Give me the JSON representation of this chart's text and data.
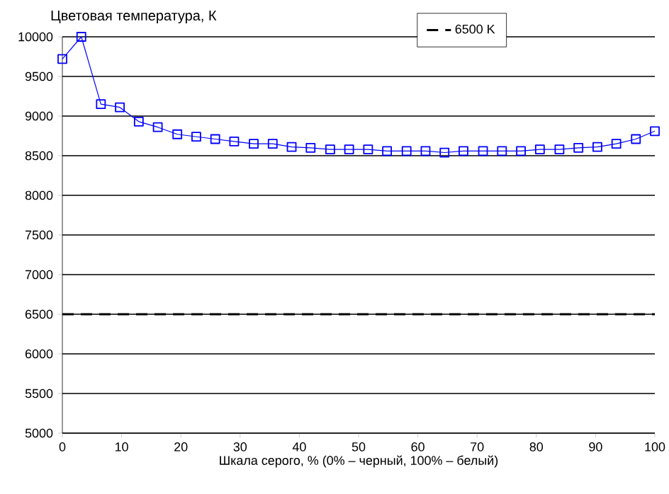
{
  "chart_data": {
    "type": "line",
    "ylabel": "Цветовая температура, К",
    "xlabel": "Шкала серого, % (0% – черный, 100% – белый)",
    "x": [
      0,
      3.2,
      6.5,
      9.7,
      12.9,
      16.1,
      19.4,
      22.6,
      25.8,
      29.0,
      32.3,
      35.5,
      38.7,
      41.9,
      45.2,
      48.4,
      51.6,
      54.8,
      58.1,
      61.3,
      64.5,
      67.7,
      71.0,
      74.2,
      77.4,
      80.6,
      83.9,
      87.1,
      90.3,
      93.5,
      96.8,
      100
    ],
    "series": [
      {
        "color": "#0000ff",
        "values": [
          9720,
          10000,
          9150,
          9110,
          8930,
          8860,
          8770,
          8740,
          8710,
          8680,
          8650,
          8650,
          8610,
          8600,
          8580,
          8580,
          8580,
          8560,
          8560,
          8560,
          8540,
          8560,
          8560,
          8560,
          8560,
          8580,
          8580,
          8600,
          8610,
          8650,
          8710,
          8810
        ]
      }
    ],
    "ref_lines": [
      {
        "axis": "y",
        "value": 6500,
        "label": "6500 K",
        "color": "#000000",
        "line_style": "dashed"
      }
    ],
    "xlim": [
      0,
      100
    ],
    "ylim": [
      5000,
      10000
    ],
    "xticks": [
      0,
      10,
      20,
      30,
      40,
      50,
      60,
      70,
      80,
      90,
      100
    ],
    "yticks": [
      5000,
      5500,
      6000,
      6500,
      7000,
      7500,
      8000,
      8500,
      9000,
      9500,
      10000
    ],
    "grid": "y",
    "legend": "top right",
    "marker": "square",
    "line_style": "solid"
  }
}
